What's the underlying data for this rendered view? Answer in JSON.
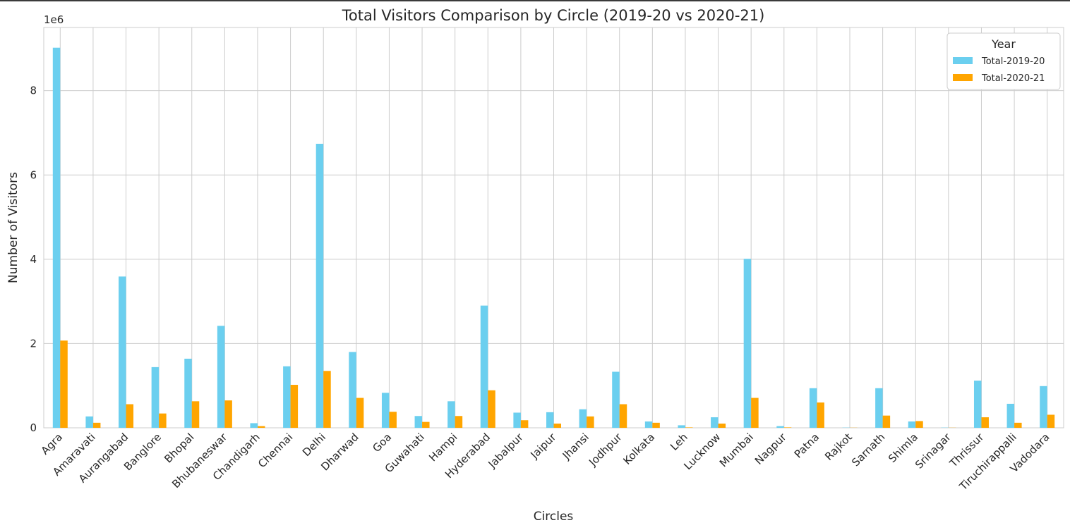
{
  "chart_data": {
    "type": "bar",
    "title": "Total Visitors Comparison by Circle (2019-20 vs 2020-21)",
    "xlabel": "Circles",
    "ylabel": "Number of Visitors",
    "y_multiplier_label": "1e6",
    "ylim": [
      0,
      9500000
    ],
    "yticks": [
      0,
      2000000,
      4000000,
      6000000,
      8000000
    ],
    "ytick_labels": [
      "0",
      "2",
      "4",
      "6",
      "8"
    ],
    "grid": true,
    "legend": {
      "title": "Year",
      "placement": "top-right"
    },
    "categories": [
      "Agra",
      "Amaravati",
      "Aurangabad",
      "Banglore",
      "Bhopal",
      "Bhubaneswar",
      "Chandigarh",
      "Chennai",
      "Delhi",
      "Dharwad",
      "Goa",
      "Guwahati",
      "Hampi",
      "Hyderabad",
      "Jabalpur",
      "Jaipur",
      "Jhansi",
      "Jodhpur",
      "Kolkata",
      "Leh",
      "Lucknow",
      "Mumbai",
      "Nagpur",
      "Patna",
      "Rajkot",
      "Sarnath",
      "Shimla",
      "Srinagar",
      "Thrissur",
      "Tiruchirappalli",
      "Vadodara"
    ],
    "series": [
      {
        "name": "Total-2019-20",
        "color": "#6bcfef",
        "values": [
          9020000,
          270000,
          3590000,
          1440000,
          1640000,
          2420000,
          110000,
          1460000,
          6740000,
          1800000,
          830000,
          280000,
          630000,
          2900000,
          360000,
          370000,
          440000,
          1330000,
          150000,
          60000,
          250000,
          4010000,
          40000,
          940000,
          5000,
          940000,
          150000,
          5000,
          1120000,
          570000,
          990000
        ]
      },
      {
        "name": "Total-2020-21",
        "color": "#ffa500",
        "values": [
          2070000,
          120000,
          560000,
          340000,
          630000,
          650000,
          40000,
          1020000,
          1350000,
          710000,
          380000,
          140000,
          280000,
          890000,
          180000,
          100000,
          270000,
          560000,
          120000,
          10000,
          100000,
          710000,
          10000,
          600000,
          3000,
          290000,
          160000,
          3000,
          250000,
          120000,
          310000
        ]
      }
    ]
  }
}
